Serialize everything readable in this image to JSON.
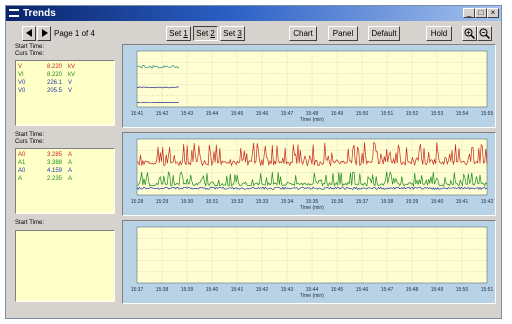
{
  "window": {
    "title": "Trends",
    "minimize": "_",
    "maximize": "□",
    "close": "×"
  },
  "toolbar": {
    "page_info": "Page 1 of 4",
    "sets": [
      {
        "prefix": "Set ",
        "key": "1"
      },
      {
        "prefix": "Set ",
        "key": "2"
      },
      {
        "prefix": "Set ",
        "key": "3"
      }
    ],
    "selected_set": 2,
    "chart": "Chart",
    "panel": "Panel",
    "default": "Default",
    "hold": "Hold",
    "zoom_in_icon": "zoom-in-icon",
    "zoom_out_icon": "zoom-out-icon"
  },
  "panels": [
    {
      "start_label": "Start Time:",
      "curs_label": "Curs Time:",
      "readings": [
        {
          "name": "V",
          "value": "8.220",
          "unit": "kV",
          "color": "#c8281e"
        },
        {
          "name": "VI",
          "value": "8.220",
          "unit": "kV",
          "color": "#1e8c1e"
        },
        {
          "name": "V0",
          "value": "226.1",
          "unit": "V",
          "color": "#1e3caa"
        },
        {
          "name": "V0",
          "value": "205.5",
          "unit": "V",
          "color": "#1e3caa"
        }
      ]
    },
    {
      "start_label": "Start Time:",
      "curs_label": "Curs Time:",
      "readings": [
        {
          "name": "A0",
          "value": "3.285",
          "unit": "A",
          "color": "#c8281e"
        },
        {
          "name": "A1",
          "value": "3.388",
          "unit": "A",
          "color": "#1e8c1e"
        },
        {
          "name": "A0",
          "value": "4.159",
          "unit": "A",
          "color": "#1e3caa"
        },
        {
          "name": "A",
          "value": "2.235",
          "unit": "A",
          "color": "#1e8c1e"
        }
      ]
    },
    {
      "start_label": "Start Time:",
      "curs_label": "",
      "readings": []
    }
  ],
  "chart_data": [
    {
      "type": "line",
      "xlabel": "Time (min)",
      "categories": [
        "15:41",
        "15:42",
        "15:43",
        "15:44",
        "15:45",
        "15:46",
        "15:47",
        "15:48",
        "15:49",
        "15:50",
        "15:51",
        "15:52",
        "15:53",
        "15:54",
        "15:55"
      ],
      "series": [
        {
          "color": "#2a8c7a",
          "style": "noisy",
          "level": 0.72,
          "amp": 0.05,
          "xmax": 0.12
        },
        {
          "color": "#303090",
          "style": "flat",
          "level": 0.35,
          "amp": 0.02,
          "xmax": 0.12
        },
        {
          "color": "#303090",
          "style": "flat",
          "level": 0.08,
          "amp": 0.01,
          "xmax": 0.12
        }
      ]
    },
    {
      "type": "line",
      "xlabel": "Time (min)",
      "categories": [
        "15:28",
        "15:29",
        "15:30",
        "15:31",
        "15:32",
        "15:33",
        "15:34",
        "15:35",
        "15:36",
        "15:37",
        "15:38",
        "15:39",
        "15:40",
        "15:41",
        "15:42"
      ],
      "series": [
        {
          "color": "#c8281e",
          "style": "spiky",
          "level": 0.62,
          "amp": 0.32,
          "xmax": 1
        },
        {
          "color": "#1e8c1e",
          "style": "spiky",
          "level": 0.22,
          "amp": 0.2,
          "xmax": 1
        },
        {
          "color": "#1e3caa",
          "style": "flat",
          "level": 0.12,
          "amp": 0.04,
          "xmax": 1
        }
      ]
    },
    {
      "type": "line",
      "xlabel": "Time (min)",
      "categories": [
        "15:37",
        "15:38",
        "15:39",
        "15:40",
        "15:41",
        "15:42",
        "15:43",
        "15:44",
        "15:45",
        "15:46",
        "15:47",
        "15:48",
        "15:49",
        "15:50",
        "15:51"
      ],
      "series": []
    }
  ]
}
